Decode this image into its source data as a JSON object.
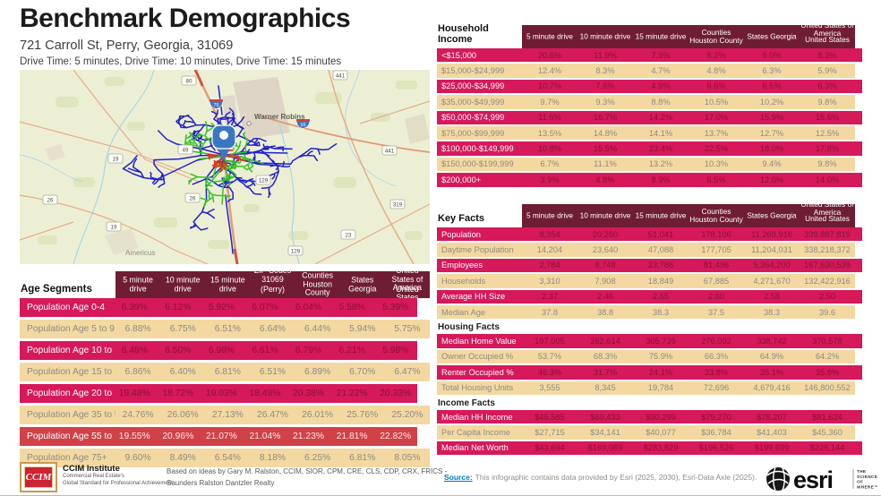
{
  "header": {
    "title": "Benchmark Demographics",
    "address": "721 Carroll St, Perry, Georgia, 31069",
    "drive_times": "Drive Time: 5 minutes, Drive Time: 10 minutes, Drive Time: 15 minutes"
  },
  "colors": {
    "header_maroon": "#6f1d33",
    "crimson": "#d5195b",
    "tan": "#f3d8a1",
    "highlight_red": "#d04148",
    "source_link": "#0079c1",
    "drive_5_min": "#e03222",
    "drive_10_min": "#35c426",
    "drive_15_min": "#2121cd"
  },
  "map": {
    "city_labels": [
      "Warner Robins",
      "Americus"
    ],
    "shields": [
      "80",
      "441",
      "19",
      "49",
      "129",
      "26",
      "26",
      "319",
      "19",
      "23",
      "129",
      "441"
    ],
    "interstate_shields": [
      "75",
      "16"
    ]
  },
  "income_table": {
    "title": "Household Income",
    "columns": [
      {
        "label": "5 minute drive"
      },
      {
        "label": "10 minute drive"
      },
      {
        "label": "15 minute drive"
      },
      {
        "label": "Counties Houston County"
      },
      {
        "label": "States Georgia"
      },
      {
        "label": "United States of America",
        "overlap": "United States"
      }
    ],
    "sections": [
      {
        "rows": [
          {
            "label": "<$15,000",
            "values": [
              "20.6%",
              "11.9%",
              "7.9%",
              "8.2%",
              "9.0%",
              "8.3%"
            ]
          },
          {
            "label": "$15,000-$24,999",
            "values": [
              "12.4%",
              "8.3%",
              "4.7%",
              "4.8%",
              "6.3%",
              "5.9%"
            ]
          },
          {
            "label": "$25,000-$34,999",
            "values": [
              "10.7%",
              "7.6%",
              "4.9%",
              "6.6%",
              "6.5%",
              "6.3%"
            ]
          },
          {
            "label": "$35,000-$49,999",
            "values": [
              "9.7%",
              "9.3%",
              "8.8%",
              "10.5%",
              "10.2%",
              "9.8%"
            ]
          },
          {
            "label": "$50,000-$74,999",
            "values": [
              "11.6%",
              "16.7%",
              "14.2%",
              "17.0%",
              "15.9%",
              "15.6%"
            ]
          },
          {
            "label": "$75,000-$99,999",
            "values": [
              "13.5%",
              "14.8%",
              "14.1%",
              "13.7%",
              "12.7%",
              "12.5%"
            ]
          },
          {
            "label": "$100,000-$149,999",
            "values": [
              "10.8%",
              "15.5%",
              "23.4%",
              "22.5%",
              "18.0%",
              "17.8%"
            ]
          },
          {
            "label": "$150,000-$199,999",
            "values": [
              "6.7%",
              "11.1%",
              "13.2%",
              "10.3%",
              "9.4%",
              "9.8%"
            ]
          },
          {
            "label": "$200,000+",
            "values": [
              "3.9%",
              "4.8%",
              "8.9%",
              "6.5%",
              "12.0%",
              "14.0%"
            ]
          }
        ]
      }
    ]
  },
  "key_facts": {
    "title": "Key Facts",
    "columns": [
      {
        "label": "5 minute drive"
      },
      {
        "label": "10 minute drive"
      },
      {
        "label": "15 minute drive"
      },
      {
        "label": "Counties Houston County"
      },
      {
        "label": "States Georgia"
      },
      {
        "label": "United States of America",
        "overlap": "United States"
      }
    ],
    "sections": [
      {
        "rows": [
          {
            "label": "Population",
            "values": [
              "8,354",
              "20,260",
              "51,041",
              "178,106",
              "11,269,916",
              "339,887,819"
            ]
          },
          {
            "label": "Daytime Population",
            "values": [
              "14,204",
              "23,640",
              "47,088",
              "177,705",
              "11,204,031",
              "338,218,372"
            ]
          },
          {
            "label": "Employees",
            "values": [
              "2,784",
              "8,748",
              "23,786",
              "81,496",
              "5,364,200",
              "167,630,539"
            ]
          },
          {
            "label": "Households",
            "values": [
              "3,310",
              "7,908",
              "18,849",
              "67,885",
              "4,271,670",
              "132,422,916"
            ]
          },
          {
            "label": "Average HH Size",
            "values": [
              "2.37",
              "2.46",
              "2.65",
              "2.60",
              "2.58",
              "2.50"
            ]
          },
          {
            "label": "Median Age",
            "values": [
              "37.8",
              "38.8",
              "38.3",
              "37.5",
              "38.3",
              "39.6"
            ]
          }
        ]
      },
      {
        "heading": "Housing Facts",
        "rows": [
          {
            "label": "Median Home Value",
            "values": [
              "197,005",
              "262,614",
              "305,739",
              "276,092",
              "338,742",
              "370,578"
            ]
          },
          {
            "label": "Owner Occupied %",
            "values": [
              "53.7%",
              "68.3%",
              "75.9%",
              "66.3%",
              "64.9%",
              "64.2%"
            ]
          },
          {
            "label": "Renter Occupied %",
            "values": [
              "46.3%",
              "31.7%",
              "24.1%",
              "33.8%",
              "35.1%",
              "35.8%"
            ]
          },
          {
            "label": "Total Housing Units",
            "values": [
              "3,555",
              "8,345",
              "19,784",
              "72,696",
              "4,679,416",
              "146,800,552"
            ]
          }
        ]
      },
      {
        "heading": "Income Facts",
        "rows": [
          {
            "label": "Median HH Income",
            "values": [
              "$45,585",
              "$69,433",
              "$90,299",
              "$79,270",
              "$78,207",
              "$81,624"
            ]
          },
          {
            "label": "Per Capita Income",
            "values": [
              "$27,715",
              "$34,141",
              "$40,077",
              "$36,784",
              "$41,403",
              "$45,360"
            ]
          },
          {
            "label": "Median Net Worth",
            "values": [
              "$43,694",
              "$169,089",
              "$283,829",
              "$196,526",
              "$199,699",
              "$228,144"
            ]
          }
        ]
      }
    ]
  },
  "age_table": {
    "title": "Age Segments",
    "columns": [
      {
        "label": "5 minute drive"
      },
      {
        "label": "10 minute drive"
      },
      {
        "label": "15 minute drive"
      },
      {
        "label": "ZIP Codes 31069",
        "overlap": "(Perry)"
      },
      {
        "label": "Counties Houston County"
      },
      {
        "label": "States Georgia"
      },
      {
        "label": "United States of America",
        "overlap": "United States"
      }
    ],
    "sections": [
      {
        "rows": [
          {
            "label": "Population Age 0-4",
            "values": [
              "6.39%",
              "6.12%",
              "5.92%",
              "6.07%",
              "6.04%",
              "5.58%",
              "5.39%"
            ]
          },
          {
            "label": "Population Age 5 to 9",
            "values": [
              "6.88%",
              "6.75%",
              "6.51%",
              "6.64%",
              "6.44%",
              "5.94%",
              "5.75%"
            ]
          },
          {
            "label": "Population Age 10 to 14",
            "values": [
              "6.48%",
              "6.50%",
              "6.98%",
              "6.61%",
              "6.79%",
              "6.21%",
              "5.98%"
            ]
          },
          {
            "label": "Population Age 15 to 19",
            "values": [
              "6.86%",
              "6.40%",
              "6.81%",
              "6.51%",
              "6.89%",
              "6.70%",
              "6.47%"
            ]
          },
          {
            "label": "Population Age 20 to 34",
            "values": [
              "19.48%",
              "18.72%",
              "19.03%",
              "18.49%",
              "20.38%",
              "21.22%",
              "20.33%"
            ]
          },
          {
            "label": "Population Age 35 to 54",
            "values": [
              "24.76%",
              "26.06%",
              "27.13%",
              "26.47%",
              "26.01%",
              "25.76%",
              "25.20%"
            ]
          },
          {
            "label": "Population Age 55 to 74",
            "values": [
              "19.55%",
              "20.96%",
              "21.07%",
              "21.04%",
              "21.23%",
              "21.81%",
              "22.82%"
            ]
          },
          {
            "label": "Population Age 75+",
            "values": [
              "9.60%",
              "8.49%",
              "6.54%",
              "8.18%",
              "6.25%",
              "6.81%",
              "8.05%"
            ]
          }
        ]
      }
    ]
  },
  "footer": {
    "ccim_abbr": "CCIM",
    "ccim_name": "CCIM Institute",
    "ccim_sub1": "Commercial Real Estate's",
    "ccim_sub2": "Global Standard for Professional Achievement",
    "based_on_line1": "Based on ideas by Gary M. Ralston, CCIM, SIOR, CPM, CRE, CLS, CDP, CRX, FRICS -",
    "based_on_line2": "Saunders Ralston Dantzler Realty",
    "source_label": "Source:",
    "source_text": "This infographic contains data provided by Esri (2025, 2030), Esri-Data Axle (2025).",
    "esri_brand": "esri",
    "esri_tagline1": "THE",
    "esri_tagline2": "SCIENCE",
    "esri_tagline3": "OF",
    "esri_tagline4": "WHERE™"
  }
}
